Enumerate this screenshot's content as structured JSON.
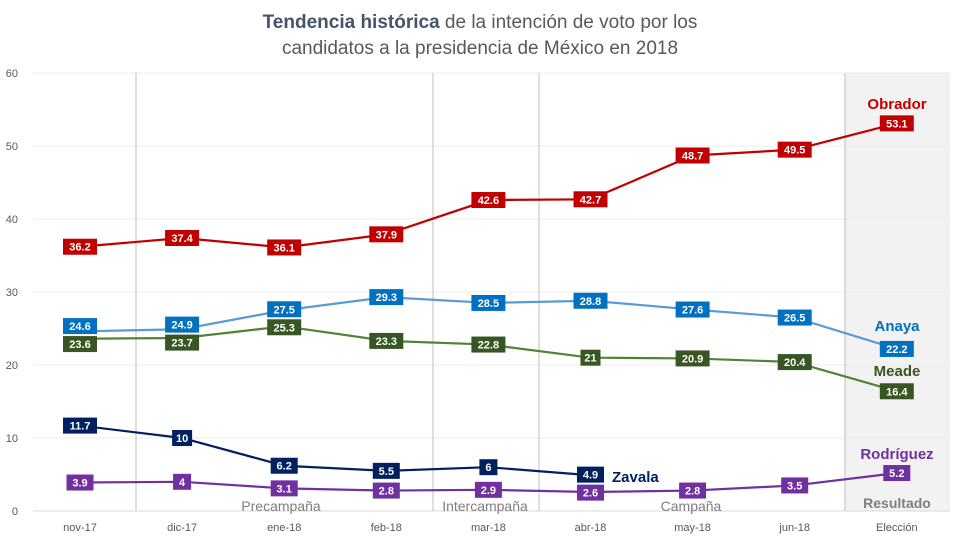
{
  "chart_data": {
    "type": "line",
    "title_bold": "Tendencia histórica",
    "title_rest_line1": " de la intención de voto por los",
    "title_line2": "candidatos a la presidencia de México en 2018",
    "categories": [
      "nov-17",
      "dic-17",
      "ene-18",
      "feb-18",
      "mar-18",
      "abr-18",
      "may-18",
      "jun-18",
      "Elección"
    ],
    "ylim": [
      0,
      60
    ],
    "yticks": [
      0,
      10,
      20,
      30,
      40,
      50,
      60
    ],
    "grid": true,
    "series": [
      {
        "name": "Obrador",
        "color": "#c00000",
        "values": [
          36.2,
          37.4,
          36.1,
          37.9,
          42.6,
          42.7,
          48.7,
          49.5,
          53.1
        ]
      },
      {
        "name": "Anaya",
        "color": "#0070c0",
        "line_color": "#5b9bd5",
        "values": [
          24.6,
          24.9,
          27.5,
          29.3,
          28.5,
          28.8,
          27.6,
          26.5,
          22.2
        ]
      },
      {
        "name": "Meade",
        "color": "#375623",
        "line_color": "#548235",
        "values": [
          23.6,
          23.7,
          25.3,
          23.3,
          22.8,
          21,
          20.9,
          20.4,
          16.4
        ]
      },
      {
        "name": "Zavala",
        "color": "#002060",
        "values": [
          11.7,
          10,
          6.2,
          5.5,
          6,
          4.9,
          null,
          null,
          null
        ]
      },
      {
        "name": "Rodríguez",
        "color": "#7030a0",
        "values": [
          3.9,
          4,
          3.1,
          2.8,
          2.9,
          2.6,
          2.8,
          3.5,
          5.2
        ]
      }
    ],
    "phases": [
      "Precampaña",
      "Intercampaña",
      "Campaña",
      "Resultado"
    ]
  }
}
